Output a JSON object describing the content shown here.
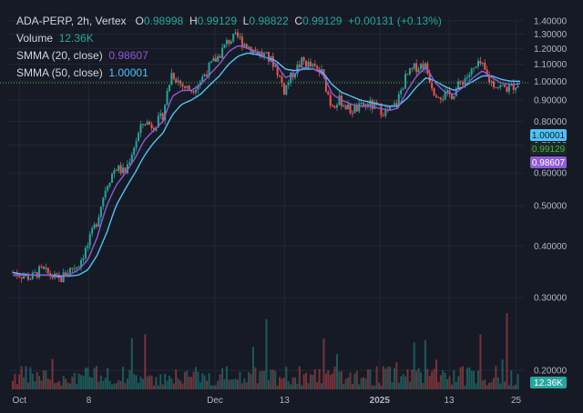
{
  "header": {
    "symbol": "ADA-PERP, 2h, Vertex",
    "o_label": "O",
    "o_value": "0.98998",
    "h_label": "H",
    "h_value": "0.99129",
    "l_label": "L",
    "l_value": "0.98822",
    "c_label": "C",
    "c_value": "0.99129",
    "change": "+0.00131 (+0.13%)"
  },
  "volume": {
    "label": "Volume",
    "value": "12.36K"
  },
  "smma20": {
    "label": "SMMA (20, close)",
    "value": "0.98607"
  },
  "smma50": {
    "label": "SMMA (50, close)",
    "value": "1.00001"
  },
  "price_badges": {
    "smma50": "1.00001",
    "last": "0.99129",
    "smma20": "0.98607",
    "volume": "12.36K"
  },
  "colors": {
    "background": "#161a25",
    "up": "#26a69a",
    "down": "#ef5350",
    "smma20": "#8e5bd6",
    "smma50": "#4fc3f7",
    "last_line": "#4caf50",
    "grid": "#232733"
  },
  "chart_data": {
    "type": "line",
    "title": "ADA-PERP, 2h, Vertex",
    "y_ticks": [
      "1.40000",
      "1.30000",
      "1.20000",
      "1.10000",
      "1.00000",
      "0.90000",
      "0.80000",
      "0.70000",
      "0.60000",
      "0.50000",
      "0.40000",
      "0.30000",
      "0.20000"
    ],
    "x_ticks": [
      "Oct",
      "8",
      "Dec",
      "13",
      "2025",
      "13",
      "25"
    ],
    "ylim": [
      0.18,
      1.42
    ],
    "scale": "log",
    "approx_close_path": [
      0.345,
      0.34,
      0.335,
      0.35,
      0.34,
      0.33,
      0.35,
      0.36,
      0.4,
      0.46,
      0.56,
      0.62,
      0.6,
      0.7,
      0.8,
      0.78,
      0.82,
      1.05,
      0.98,
      0.95,
      1.0,
      1.08,
      1.15,
      1.25,
      1.28,
      1.22,
      1.18,
      1.15,
      1.1,
      0.95,
      1.05,
      1.12,
      1.08,
      1.05,
      0.88,
      0.9,
      0.85,
      0.86,
      0.88,
      0.86,
      0.84,
      0.88,
      1.02,
      1.08,
      1.1,
      0.95,
      0.92,
      0.93,
      1.0,
      1.05,
      1.1,
      1.0,
      0.97,
      0.96,
      0.99
    ],
    "approx_smma20_path": [
      0.34,
      0.34,
      0.34,
      0.34,
      0.34,
      0.335,
      0.34,
      0.35,
      0.37,
      0.42,
      0.5,
      0.56,
      0.6,
      0.65,
      0.72,
      0.76,
      0.8,
      0.92,
      0.95,
      0.95,
      0.98,
      1.04,
      1.1,
      1.18,
      1.22,
      1.2,
      1.17,
      1.14,
      1.1,
      1.02,
      1.04,
      1.08,
      1.07,
      1.04,
      0.93,
      0.9,
      0.88,
      0.87,
      0.87,
      0.86,
      0.85,
      0.86,
      0.95,
      1.03,
      1.08,
      0.99,
      0.94,
      0.93,
      0.97,
      1.02,
      1.06,
      1.02,
      0.99,
      0.98,
      0.986
    ],
    "approx_smma50_path": [
      0.345,
      0.342,
      0.34,
      0.34,
      0.34,
      0.338,
      0.338,
      0.34,
      0.35,
      0.38,
      0.43,
      0.5,
      0.55,
      0.6,
      0.66,
      0.71,
      0.75,
      0.83,
      0.88,
      0.9,
      0.93,
      0.98,
      1.03,
      1.1,
      1.15,
      1.17,
      1.16,
      1.14,
      1.12,
      1.07,
      1.06,
      1.07,
      1.07,
      1.05,
      0.98,
      0.94,
      0.92,
      0.9,
      0.89,
      0.88,
      0.87,
      0.87,
      0.91,
      0.97,
      1.02,
      1.0,
      0.97,
      0.95,
      0.97,
      1.0,
      1.03,
      1.03,
      1.01,
      1.0,
      1.00001
    ],
    "last_value": 0.99129
  }
}
